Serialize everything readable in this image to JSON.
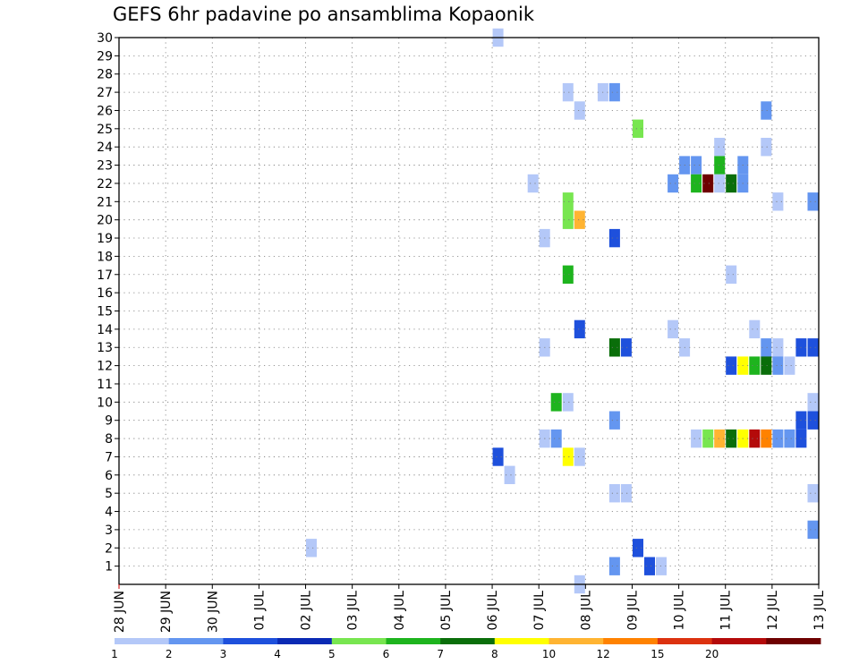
{
  "chart_data": {
    "type": "heatmap",
    "title": "GEFS 6hr padavine po ansamblima Kopaonik",
    "xlabel": "",
    "ylabel": "",
    "x_tick_labels": [
      "28 JUN",
      "29 JUN",
      "30 JUN",
      "01 JUL",
      "02 JUL",
      "03 JUL",
      "04 JUL",
      "05 JUL",
      "06 JUL",
      "07 JUL",
      "08 JUL",
      "09 JUL",
      "10 JUL",
      "11 JUL",
      "12 JUL",
      "13 JUL"
    ],
    "x_unit": "6-hour step (4 per day), 0 = 28 JUN 00Z",
    "x_range": [
      0,
      60
    ],
    "y_tick_labels": [
      "1",
      "2",
      "3",
      "4",
      "5",
      "6",
      "7",
      "8",
      "9",
      "10",
      "11",
      "12",
      "13",
      "14",
      "15",
      "16",
      "17",
      "18",
      "19",
      "20",
      "21",
      "22",
      "23",
      "24",
      "25",
      "26",
      "27",
      "28",
      "29",
      "30"
    ],
    "y_range": [
      0,
      30
    ],
    "grid": true,
    "colorbar": {
      "labels": [
        "1",
        "2",
        "3",
        "4",
        "5",
        "6",
        "7",
        "8",
        "10",
        "12",
        "15",
        "20"
      ],
      "colors": [
        "#b4c8f8",
        "#6496f0",
        "#1e50dc",
        "#0a2ab4",
        "#78e650",
        "#1eb41e",
        "#0a6e0a",
        "#ffff00",
        "#ffb432",
        "#ff8200",
        "#dc3210",
        "#b40a0a",
        "#6e0000"
      ]
    },
    "cells": [
      {
        "ens": 30,
        "step": 32,
        "level": 1
      },
      {
        "ens": 27,
        "step": 38,
        "level": 1
      },
      {
        "ens": 27,
        "step": 41,
        "level": 1
      },
      {
        "ens": 27,
        "step": 42,
        "level": 2
      },
      {
        "ens": 26,
        "step": 39,
        "level": 1
      },
      {
        "ens": 26,
        "step": 55,
        "level": 2
      },
      {
        "ens": 25,
        "step": 44,
        "level": 5
      },
      {
        "ens": 24,
        "step": 51,
        "level": 1
      },
      {
        "ens": 24,
        "step": 55,
        "level": 1
      },
      {
        "ens": 23,
        "step": 48,
        "level": 2
      },
      {
        "ens": 23,
        "step": 49,
        "level": 2
      },
      {
        "ens": 23,
        "step": 51,
        "level": 6
      },
      {
        "ens": 23,
        "step": 53,
        "level": 2
      },
      {
        "ens": 22,
        "step": 35,
        "level": 1
      },
      {
        "ens": 22,
        "step": 47,
        "level": 2
      },
      {
        "ens": 22,
        "step": 49,
        "level": 6
      },
      {
        "ens": 22,
        "step": 50,
        "level": 13
      },
      {
        "ens": 22,
        "step": 51,
        "level": 1
      },
      {
        "ens": 22,
        "step": 52,
        "level": 7
      },
      {
        "ens": 22,
        "step": 53,
        "level": 2
      },
      {
        "ens": 21,
        "step": 38,
        "level": 5
      },
      {
        "ens": 21,
        "step": 56,
        "level": 1
      },
      {
        "ens": 21,
        "step": 59,
        "level": 2
      },
      {
        "ens": 20,
        "step": 38,
        "level": 5
      },
      {
        "ens": 20,
        "step": 39,
        "level": 9
      },
      {
        "ens": 19,
        "step": 36,
        "level": 1
      },
      {
        "ens": 19,
        "step": 42,
        "level": 3
      },
      {
        "ens": 17,
        "step": 38,
        "level": 6
      },
      {
        "ens": 17,
        "step": 52,
        "level": 1
      },
      {
        "ens": 14,
        "step": 39,
        "level": 3
      },
      {
        "ens": 14,
        "step": 47,
        "level": 1
      },
      {
        "ens": 14,
        "step": 54,
        "level": 1
      },
      {
        "ens": 13,
        "step": 36,
        "level": 1
      },
      {
        "ens": 13,
        "step": 42,
        "level": 7
      },
      {
        "ens": 13,
        "step": 43,
        "level": 3
      },
      {
        "ens": 13,
        "step": 48,
        "level": 1
      },
      {
        "ens": 13,
        "step": 55,
        "level": 2
      },
      {
        "ens": 13,
        "step": 56,
        "level": 1
      },
      {
        "ens": 13,
        "step": 58,
        "level": 3
      },
      {
        "ens": 13,
        "step": 59,
        "level": 3
      },
      {
        "ens": 12,
        "step": 52,
        "level": 3
      },
      {
        "ens": 12,
        "step": 53,
        "level": 8
      },
      {
        "ens": 12,
        "step": 54,
        "level": 6
      },
      {
        "ens": 12,
        "step": 55,
        "level": 7
      },
      {
        "ens": 12,
        "step": 56,
        "level": 2
      },
      {
        "ens": 12,
        "step": 57,
        "level": 1
      },
      {
        "ens": 10,
        "step": 37,
        "level": 6
      },
      {
        "ens": 10,
        "step": 38,
        "level": 1
      },
      {
        "ens": 10,
        "step": 59,
        "level": 1
      },
      {
        "ens": 9,
        "step": 42,
        "level": 2
      },
      {
        "ens": 9,
        "step": 58,
        "level": 3
      },
      {
        "ens": 9,
        "step": 59,
        "level": 3
      },
      {
        "ens": 8,
        "step": 36,
        "level": 1
      },
      {
        "ens": 8,
        "step": 37,
        "level": 2
      },
      {
        "ens": 8,
        "step": 49,
        "level": 1
      },
      {
        "ens": 8,
        "step": 50,
        "level": 5
      },
      {
        "ens": 8,
        "step": 51,
        "level": 9
      },
      {
        "ens": 8,
        "step": 52,
        "level": 7
      },
      {
        "ens": 8,
        "step": 53,
        "level": 8
      },
      {
        "ens": 8,
        "step": 54,
        "level": 12
      },
      {
        "ens": 8,
        "step": 55,
        "level": 10
      },
      {
        "ens": 8,
        "step": 56,
        "level": 2
      },
      {
        "ens": 8,
        "step": 57,
        "level": 2
      },
      {
        "ens": 8,
        "step": 58,
        "level": 3
      },
      {
        "ens": 7,
        "step": 32,
        "level": 3
      },
      {
        "ens": 7,
        "step": 38,
        "level": 8
      },
      {
        "ens": 7,
        "step": 39,
        "level": 1
      },
      {
        "ens": 6,
        "step": 33,
        "level": 1
      },
      {
        "ens": 5,
        "step": 42,
        "level": 1
      },
      {
        "ens": 5,
        "step": 43,
        "level": 1
      },
      {
        "ens": 5,
        "step": 59,
        "level": 1
      },
      {
        "ens": 3,
        "step": 59,
        "level": 2
      },
      {
        "ens": 2,
        "step": 16,
        "level": 1
      },
      {
        "ens": 2,
        "step": 44,
        "level": 3
      },
      {
        "ens": 1,
        "step": 42,
        "level": 2
      },
      {
        "ens": 1,
        "step": 45,
        "level": 3
      },
      {
        "ens": 1,
        "step": 46,
        "level": 1
      },
      {
        "ens": 0,
        "step": 39,
        "level": 1
      }
    ]
  }
}
